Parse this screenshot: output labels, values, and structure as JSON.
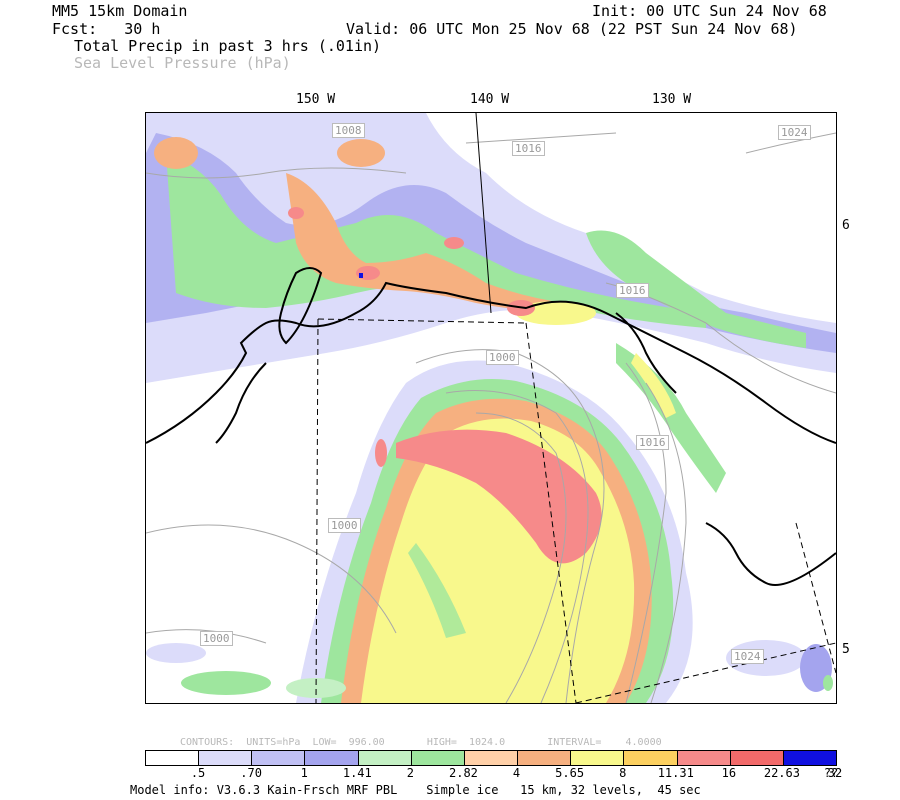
{
  "header": {
    "domain_title": "MM5 15km Domain",
    "fcst_label": "Fcst:   30 h",
    "init": "Init: 00 UTC Sun 24 Nov 68",
    "valid": "Valid: 06 UTC Mon 25 Nov 68 (22 PST Sun 24 Nov 68)",
    "field1": "Total Precip in past 3 hrs (.01in)",
    "field2": "Sea Level Pressure (hPa)"
  },
  "longitudes": [
    "150 W",
    "140 W",
    "130 W"
  ],
  "latitudes": [
    "6",
    "5"
  ],
  "isobar_labels": [
    "1008",
    "1016",
    "1024",
    "1016",
    "1000",
    "1016",
    "1000",
    "1000",
    "1024"
  ],
  "contour_info": "CONTOURS:  UNITS=hPa  LOW=  996.00       HIGH=  1024.0       INTERVAL=    4.0000",
  "colorbar": {
    "colors": [
      "#ffffff",
      "#dcdcfa",
      "#c0c0f4",
      "#a4a4ee",
      "#c4f0c4",
      "#9ee69e",
      "#ffd0a8",
      "#f6b080",
      "#f8f88c",
      "#fcd060",
      "#f68a8a",
      "#f26a6a",
      "#1010e0"
    ],
    "ticks": [
      ".5",
      ".70",
      "1",
      "1.41",
      "2",
      "2.82",
      "4",
      "5.65",
      "8",
      "11.31",
      "16",
      "22.63",
      "32",
      "??"
    ]
  },
  "model_info": "Model info: V3.6.3 Kain-Frsch MRF PBL    Simple ice   15 km, 32 levels,  45 sec"
}
